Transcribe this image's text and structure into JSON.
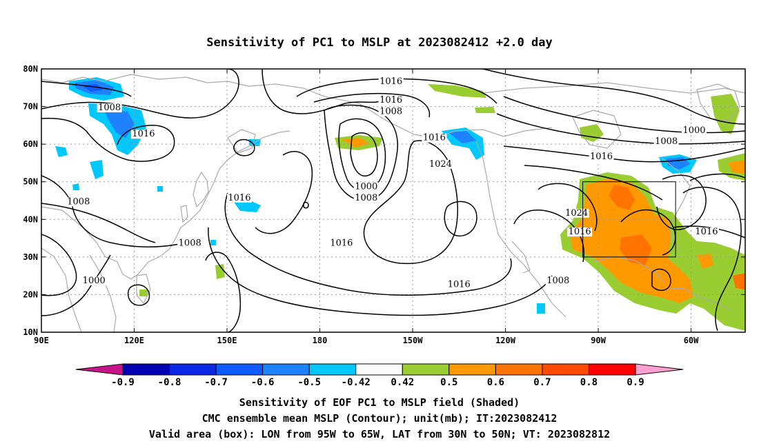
{
  "title": "Sensitivity of PC1 to MSLP at 2023082412 +2.0 day",
  "map": {
    "lon_labels": [
      "90E",
      "120E",
      "150E",
      "180",
      "150W",
      "120W",
      "90W",
      "60W"
    ],
    "lat_labels": [
      "80N",
      "70N",
      "60N",
      "50N",
      "40N",
      "30N",
      "20N",
      "10N"
    ],
    "contour_labels": [
      {
        "text": "1016",
        "lon": -157,
        "lat": 76
      },
      {
        "text": "1016",
        "lon": -157,
        "lat": 71
      },
      {
        "text": "1008",
        "lon": -157,
        "lat": 68
      },
      {
        "text": "1008",
        "lon": 112,
        "lat": 69
      },
      {
        "text": "1016",
        "lon": 123,
        "lat": 62
      },
      {
        "text": "1016",
        "lon": -143,
        "lat": 61
      },
      {
        "text": "1024",
        "lon": -141,
        "lat": 54
      },
      {
        "text": "1000",
        "lon": -165,
        "lat": 48
      },
      {
        "text": "1008",
        "lon": -165,
        "lat": 45
      },
      {
        "text": "1008",
        "lon": 102,
        "lat": 44
      },
      {
        "text": "1016",
        "lon": 154,
        "lat": 45
      },
      {
        "text": "1016",
        "lon": -173,
        "lat": 33
      },
      {
        "text": "1008",
        "lon": 138,
        "lat": 33
      },
      {
        "text": "1000",
        "lon": 107,
        "lat": 23
      },
      {
        "text": "1016",
        "lon": -135,
        "lat": 22
      },
      {
        "text": "1008",
        "lon": -103,
        "lat": 23
      },
      {
        "text": "1024",
        "lon": -97,
        "lat": 41
      },
      {
        "text": "1016",
        "lon": -96,
        "lat": 36
      },
      {
        "text": "1016",
        "lon": -55,
        "lat": 36
      },
      {
        "text": "1008",
        "lon": -68,
        "lat": 60
      },
      {
        "text": "1016",
        "lon": -89,
        "lat": 56
      },
      {
        "text": "1000",
        "lon": -59,
        "lat": 63
      }
    ]
  },
  "colorbar": {
    "labels": [
      "-0.9",
      "-0.8",
      "-0.7",
      "-0.6",
      "-0.5",
      "-0.42",
      "0.42",
      "0.5",
      "0.6",
      "0.7",
      "0.8",
      "0.9"
    ],
    "colors": [
      "#0000b4",
      "#0a28e6",
      "#0f5aff",
      "#1e82ff",
      "#00c8ff",
      "#ffffff",
      "#9acd32",
      "#ff9900",
      "#ff7300",
      "#ff4b00",
      "#ff0000"
    ],
    "low_end_color": "#c8148c",
    "high_end_color": "#ff9fd2"
  },
  "footer": {
    "line1": "Sensitivity of EOF PC1 to MSLP field (Shaded)",
    "line2": "CMC ensemble mean MSLP (Contour); unit(mb); IT:2023082412",
    "line3": "Valid area (box): LON from 95W to 65W, LAT from 30N to 50N; VT: 2023082812"
  },
  "colors": {
    "coast": "#aaaaaa",
    "contour": "#000000",
    "grid": "#9a9a9a"
  }
}
